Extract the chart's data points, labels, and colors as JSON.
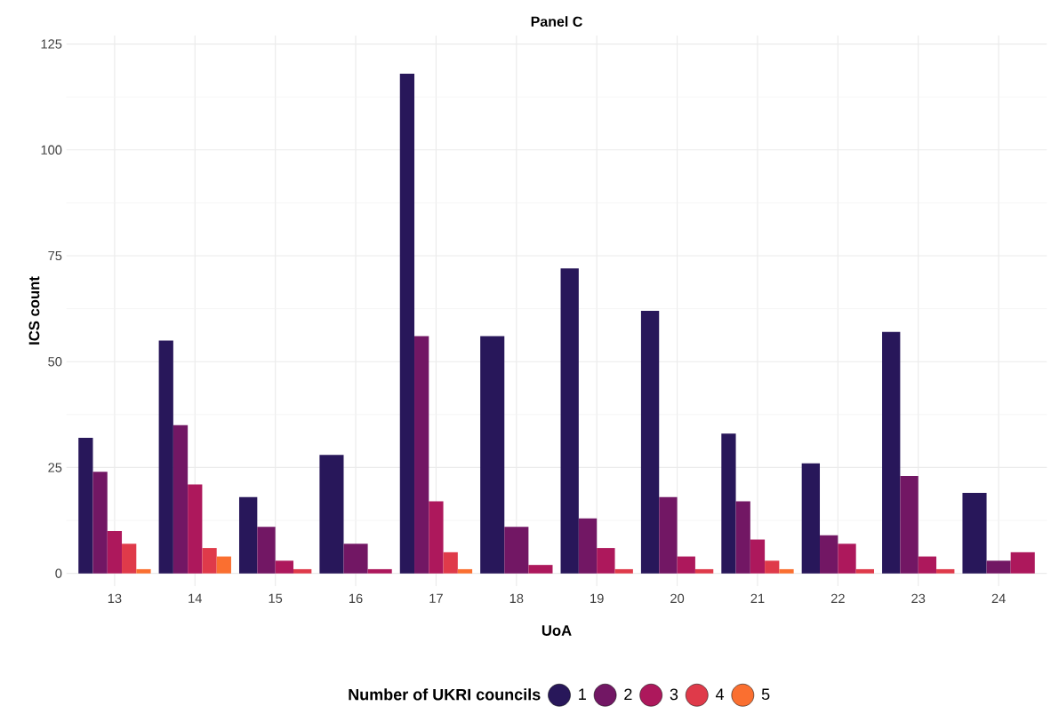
{
  "chart_data": {
    "type": "bar",
    "title": "Panel C",
    "xlabel": "UoA",
    "ylabel": "ICS count",
    "legend_title": "Number of UKRI councils",
    "categories": [
      "13",
      "14",
      "15",
      "16",
      "17",
      "18",
      "19",
      "20",
      "21",
      "22",
      "23",
      "24"
    ],
    "series": [
      {
        "name": "1",
        "color": "#28175a",
        "values": [
          32,
          55,
          18,
          28,
          118,
          56,
          72,
          62,
          33,
          26,
          57,
          19
        ]
      },
      {
        "name": "2",
        "color": "#721764",
        "values": [
          24,
          35,
          11,
          7,
          56,
          11,
          13,
          18,
          17,
          9,
          23,
          3
        ]
      },
      {
        "name": "3",
        "color": "#ad185c",
        "values": [
          10,
          21,
          3,
          1,
          17,
          2,
          6,
          4,
          8,
          7,
          4,
          5
        ]
      },
      {
        "name": "4",
        "color": "#df3a4a",
        "values": [
          7,
          6,
          1,
          null,
          5,
          null,
          1,
          1,
          3,
          1,
          1,
          null
        ]
      },
      {
        "name": "5",
        "color": "#fa6f30",
        "values": [
          1,
          4,
          null,
          null,
          1,
          null,
          null,
          null,
          1,
          null,
          null,
          null
        ]
      }
    ],
    "ylim": [
      -3,
      127
    ],
    "yticks": [
      0,
      25,
      50,
      75,
      100,
      125
    ],
    "grid": true,
    "legend": "bottom"
  }
}
